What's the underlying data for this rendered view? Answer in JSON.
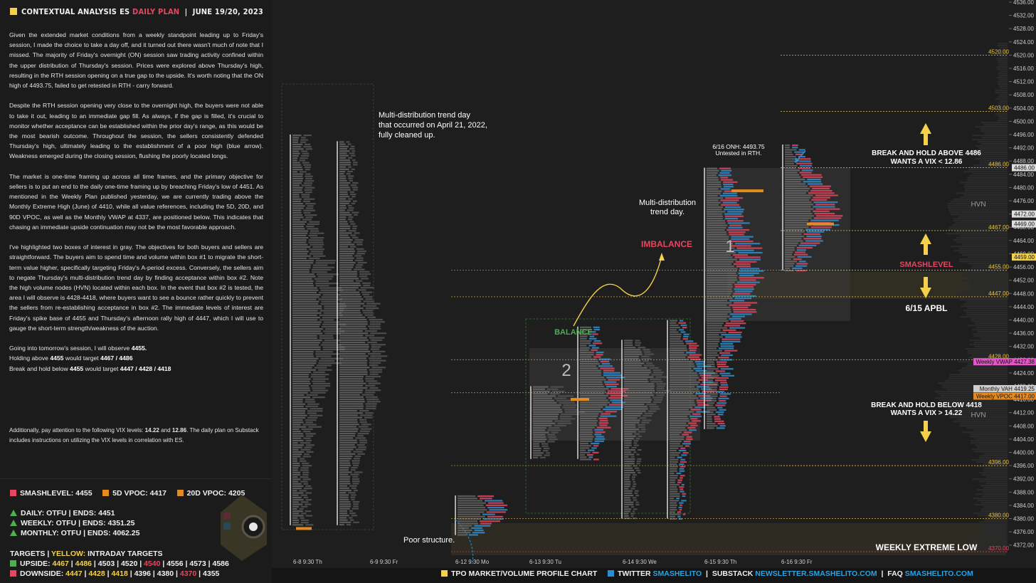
{
  "header": {
    "title": "CONTEXTUAL ANALYSIS",
    "instrument": "ES",
    "plan": "DAILY PLAN",
    "date": "JUNE 19/20, 2023"
  },
  "analysis": {
    "p1": "Given the extended market conditions from a weekly standpoint leading up to Friday's session, I made the choice to take a day off, and it turned out there wasn't much of note that I missed. The majority of Friday's overnight (ON) session saw trading activity confined within the upper distribution of Thursday's session. Prices were explored above Thursday's high, resulting in the RTH session opening on a true gap to the upside. It's worth noting that the ON high of 4493.75, failed to get retested in RTH - carry forward.",
    "p2": "Despite the RTH session opening very close to the overnight high, the buyers were not able to take it out, leading to an immediate gap fill. As always, if the gap is filled, it's crucial to monitor whether acceptance can be established within the prior day's range, as this would be the most bearish outcome. Throughout the session, the sellers consistently defended Thursday's high, ultimately leading to the establishment of a poor high (blue arrow). Weakness emerged during the closing session, flushing the poorly located longs.",
    "p3": "The market is one-time framing up across all time frames, and the primary objective for sellers is to put an end to the daily one-time framing up by breaching Friday's low of 4451. As mentioned in the Weekly Plan published yesterday, we are currently trading above the Monthly Extreme High (June) of 4410, while all value references, including the 5D, 20D, and 90D VPOC, as well as the Monthly VWAP at 4337, are positioned below. This indicates that chasing an immediate upside continuation may not be the most favorable approach.",
    "p4": "I've highlighted two boxes of interest in gray. The objectives for both buyers and sellers are straightforward. The buyers aim to spend time and volume within box #1 to migrate the short-term value higher, specifically targeting Friday's A-period excess. Conversely, the sellers aim to negate Thursday's multi-distribution trend day by finding acceptance within box #2. Note the high volume nodes (HVN) located within each box. In the event that box #2 is tested, the area I will observe is 4428-4418, where buyers want to see a bounce rather quickly to prevent the sellers from re-establishing acceptance in box #2. The immediate levels of interest are Friday's spike base of 4455 and Thursday's afternoon rally high of 4447, which I will use to gauge the short-term strength/weakness of the auction.",
    "p5a": "Going into tomorrow's session, I will observe",
    "p5a_val": "4455.",
    "p5b_pre": "Holding above",
    "p5b_val": "4455",
    "p5b_mid": "would target",
    "p5b_tgt": "4467 / 4486",
    "p5c_pre": "Break and hold below",
    "p5c_val": "4455",
    "p5c_mid": "would target",
    "p5c_tgt": "4447 / 4428 / 4418",
    "vix_pre": "Additionally, pay attention to the following VIX levels:",
    "vix_a": "14.22",
    "vix_and": "and",
    "vix_b": "12.86",
    "vix_post": ". The daily plan on Substack includes instructions on utilizing the VIX levels in correlation with ES."
  },
  "levels": {
    "smash": "SMASHLEVEL: 4455",
    "vpoc5": "5D VPOC: 4417",
    "vpoc20": "20D VPOC: 4205",
    "daily": "DAILY: OTFU  |  ENDS: 4451",
    "weekly": "WEEKLY: OTFU  |  ENDS: 4351.25",
    "monthly": "MONTHLY: OTFU  |  ENDS: 4062.25",
    "targets_label": "TARGETS",
    "targets_sep": "|",
    "targets_yellow": "YELLOW:",
    "targets_intraday": "INTRADAY TARGETS",
    "upside_label": "UPSIDE:",
    "upside": [
      {
        "v": "4467",
        "c": "y"
      },
      {
        "v": "4486",
        "c": "y"
      },
      {
        "v": "4503",
        "c": "w"
      },
      {
        "v": "4520",
        "c": "w"
      },
      {
        "v": "4540",
        "c": "r"
      },
      {
        "v": "4556",
        "c": "w"
      },
      {
        "v": "4573",
        "c": "w"
      },
      {
        "v": "4586",
        "c": "w"
      }
    ],
    "downside_label": "DOWNSIDE:",
    "downside": [
      {
        "v": "4447",
        "c": "y"
      },
      {
        "v": "4428",
        "c": "y"
      },
      {
        "v": "4418",
        "c": "y"
      },
      {
        "v": "4396",
        "c": "w"
      },
      {
        "v": "4380",
        "c": "w"
      },
      {
        "v": "4370",
        "c": "r"
      },
      {
        "v": "4355",
        "c": "w"
      }
    ]
  },
  "footer": {
    "chart_label": "TPO MARKET/VOLUME PROFILE CHART",
    "twitter": "TWITTER",
    "twitter_handle": "SMASHELITO",
    "substack": "SUBSTACK",
    "substack_url": "NEWSLETTER.SMASHELITO.COM",
    "faq": "FAQ",
    "faq_url": "SMASHELITO.COM",
    "sep": "|"
  },
  "annotations": {
    "multi_dist_1": "Multi-distribution trend day",
    "multi_dist_2": "that occurred on April 21, 2022,",
    "multi_dist_3": "fully cleaned up.",
    "multi_dist_b1": "Multi-distribution",
    "multi_dist_b2": "trend day.",
    "onh_1": "6/16 ONH: 4493.75",
    "onh_2": "Untested in RTH.",
    "imbalance": "IMBALANCE",
    "balance": "BALANCE",
    "box1": "1",
    "box2": "2",
    "poor": "Poor structure.",
    "break_above_1": "BREAK AND HOLD ABOVE 4486",
    "break_above_2": "WANTS A VIX < 12.86",
    "break_below_1": "BREAK AND HOLD BELOW 4418",
    "break_below_2": "WANTS A VIX > 14.22",
    "smashlevel": "SMASHLEVEL",
    "apbl": "6/15 APBL",
    "hvn": "HVN",
    "weekly_extreme_low": "WEEKLY EXTREME LOW"
  },
  "chart_data": {
    "type": "tpo-volume-profile",
    "instrument": "ES",
    "price_axis": {
      "min": 4370,
      "max": 4536,
      "ticks": [
        4536,
        4532,
        4528,
        4524,
        4520,
        4516,
        4512,
        4508,
        4504,
        4500,
        4496,
        4492,
        4488,
        4484,
        4480,
        4476,
        4472,
        4468,
        4464,
        4460,
        4456,
        4452,
        4448,
        4444,
        4440,
        4436,
        4432,
        4428,
        4424,
        4420,
        4416,
        4412,
        4408,
        4404,
        4400,
        4396,
        4392,
        4388,
        4384,
        4380,
        4376,
        4372
      ]
    },
    "time_axis": [
      "6-8  9:30 Th",
      "6-9  9:30 Fr",
      "6-12  9:30 Mo",
      "6-13  9:30 Tu",
      "6-14  9:30 We",
      "6-15  9:30 Th",
      "6-16  9:30 Fr"
    ],
    "levels": [
      {
        "price": 4520,
        "label": "4520.00",
        "color": "#e6c34a"
      },
      {
        "price": 4503,
        "label": "4503.00",
        "color": "#e6c34a"
      },
      {
        "price": 4486,
        "label": "4486.00",
        "color": "#e6c34a"
      },
      {
        "price": 4467,
        "label": "4467.00",
        "color": "#e6c34a"
      },
      {
        "price": 4455,
        "label": "4455.00",
        "color": "#e6c34a"
      },
      {
        "price": 4447,
        "label": "4447.00",
        "color": "#e6c34a"
      },
      {
        "price": 4428,
        "label": "4428.00",
        "color": "#e6c34a"
      },
      {
        "price": 4396,
        "label": "4396.00",
        "color": "#e6c34a"
      },
      {
        "price": 4380,
        "label": "4380.00",
        "color": "#e6c34a"
      },
      {
        "price": 4370,
        "label": "4370.00",
        "color": "#e4475f"
      }
    ],
    "price_tags": [
      {
        "price": 4486,
        "label": "4486.00",
        "bg": "#dddddd",
        "fg": "#111111"
      },
      {
        "price": 4472,
        "label": "4472.00",
        "bg": "#dddddd",
        "fg": "#111111"
      },
      {
        "price": 4469,
        "label": "4469.00",
        "bg": "#dddddd",
        "fg": "#111111"
      },
      {
        "price": 4459,
        "label": "4459.00",
        "bg": "#f5d04a",
        "fg": "#111111"
      },
      {
        "price": 4427.38,
        "label": "4427.38",
        "bg": "#e455c8",
        "fg": "#111111",
        "name": "Weekly VWAP"
      },
      {
        "price": 4419.25,
        "label": "4419.25",
        "bg": "#cfcfcf",
        "fg": "#111111",
        "name": "Monthly VAH"
      },
      {
        "price": 4417,
        "label": "4417.00",
        "bg": "#e58a1f",
        "fg": "#111111",
        "name": "Weekly VPOC"
      }
    ]
  }
}
